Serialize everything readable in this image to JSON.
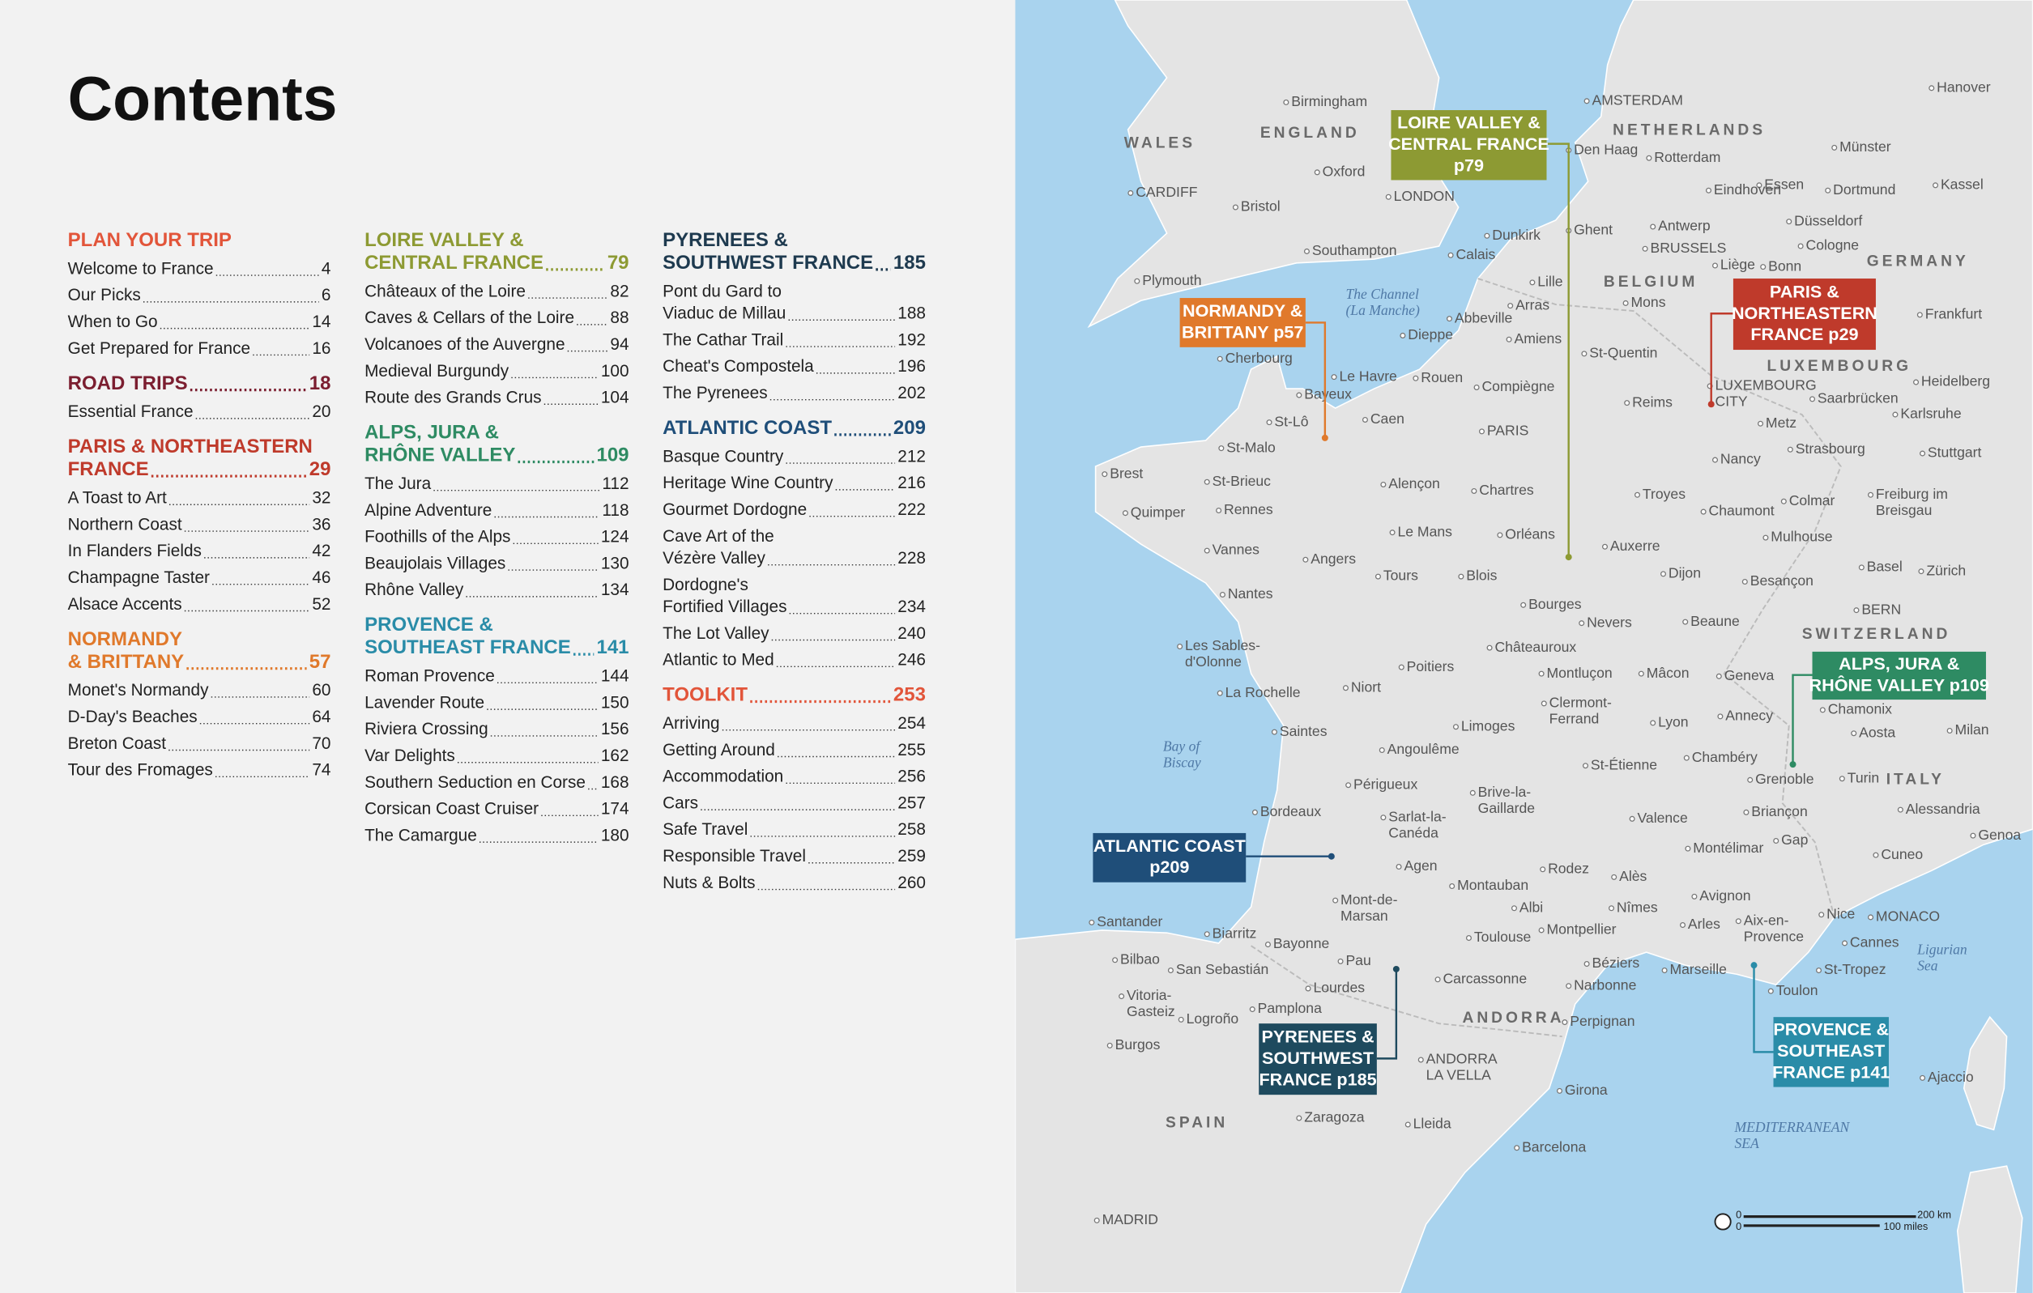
{
  "contents": {
    "title": "Contents",
    "columns": [
      [
        {
          "title": [
            "PLAN YOUR TRIP"
          ],
          "color": "#e2553a",
          "entries": [
            {
              "lines": [
                "Welcome to France"
              ],
              "page": 4
            },
            {
              "lines": [
                "Our Picks"
              ],
              "page": 6
            },
            {
              "lines": [
                "When to Go"
              ],
              "page": 14
            },
            {
              "lines": [
                "Get Prepared for France"
              ],
              "page": 16
            }
          ]
        },
        {
          "title": [
            "ROAD TRIPS"
          ],
          "page": 18,
          "color": "#7b1e30",
          "entries": [
            {
              "lines": [
                "Essential France"
              ],
              "page": 20
            }
          ]
        },
        {
          "title": [
            "PARIS & NORTHEASTERN",
            "FRANCE"
          ],
          "page": 29,
          "color": "#bf3a2b",
          "entries": [
            {
              "lines": [
                "A Toast to Art"
              ],
              "page": 32
            },
            {
              "lines": [
                "Northern Coast"
              ],
              "page": 36
            },
            {
              "lines": [
                "In Flanders Fields"
              ],
              "page": 42
            },
            {
              "lines": [
                "Champagne Taster"
              ],
              "page": 46
            },
            {
              "lines": [
                "Alsace Accents"
              ],
              "page": 52
            }
          ]
        },
        {
          "title": [
            "NORMANDY",
            "& BRITTANY"
          ],
          "page": 57,
          "color": "#e0792b",
          "entries": [
            {
              "lines": [
                "Monet's Normandy"
              ],
              "page": 60
            },
            {
              "lines": [
                "D-Day's Beaches"
              ],
              "page": 64
            },
            {
              "lines": [
                "Breton Coast"
              ],
              "page": 70
            },
            {
              "lines": [
                "Tour des Fromages"
              ],
              "page": 74
            }
          ]
        }
      ],
      [
        {
          "title": [
            "LOIRE VALLEY &",
            "CENTRAL FRANCE"
          ],
          "page": 79,
          "color": "#8d9a33",
          "entries": [
            {
              "lines": [
                "Châteaux of the Loire"
              ],
              "page": 82
            },
            {
              "lines": [
                "Caves & Cellars of the Loire"
              ],
              "page": 88
            },
            {
              "lines": [
                "Volcanoes of the Auvergne"
              ],
              "page": 94
            },
            {
              "lines": [
                "Medieval Burgundy"
              ],
              "page": 100
            },
            {
              "lines": [
                "Route des Grands Crus"
              ],
              "page": 104
            }
          ]
        },
        {
          "title": [
            "ALPS, JURA &",
            "RHÔNE VALLEY"
          ],
          "page": 109,
          "color": "#2e8b63",
          "entries": [
            {
              "lines": [
                "The Jura"
              ],
              "page": 112
            },
            {
              "lines": [
                "Alpine Adventure"
              ],
              "page": 118
            },
            {
              "lines": [
                "Foothills of the Alps"
              ],
              "page": 124
            },
            {
              "lines": [
                "Beaujolais Villages"
              ],
              "page": 130
            },
            {
              "lines": [
                "Rhône Valley"
              ],
              "page": 134
            }
          ]
        },
        {
          "title": [
            "PROVENCE &",
            "SOUTHEAST FRANCE"
          ],
          "page": 141,
          "color": "#2a8ca8",
          "entries": [
            {
              "lines": [
                "Roman Provence"
              ],
              "page": 144
            },
            {
              "lines": [
                "Lavender Route"
              ],
              "page": 150
            },
            {
              "lines": [
                "Riviera Crossing"
              ],
              "page": 156
            },
            {
              "lines": [
                "Var Delights"
              ],
              "page": 162
            },
            {
              "lines": [
                "Southern Seduction en Corse"
              ],
              "page": 168
            },
            {
              "lines": [
                "Corsican Coast Cruiser"
              ],
              "page": 174
            },
            {
              "lines": [
                "The Camargue"
              ],
              "page": 180
            }
          ]
        }
      ],
      [
        {
          "title": [
            "PYRENEES &",
            "SOUTHWEST FRANCE"
          ],
          "page": 185,
          "color": "#1e3a4f",
          "entries": [
            {
              "lines": [
                "Pont du Gard to",
                "Viaduc de Millau"
              ],
              "page": 188
            },
            {
              "lines": [
                "The Cathar Trail"
              ],
              "page": 192
            },
            {
              "lines": [
                "Cheat's Compostela"
              ],
              "page": 196
            },
            {
              "lines": [
                "The Pyrenees"
              ],
              "page": 202
            }
          ]
        },
        {
          "title": [
            "ATLANTIC COAST"
          ],
          "page": 209,
          "color": "#1f4e79",
          "entries": [
            {
              "lines": [
                "Basque Country"
              ],
              "page": 212
            },
            {
              "lines": [
                "Heritage Wine Country"
              ],
              "page": 216
            },
            {
              "lines": [
                "Gourmet Dordogne"
              ],
              "page": 222
            },
            {
              "lines": [
                "Cave Art of the",
                "Vézère Valley"
              ],
              "page": 228
            },
            {
              "lines": [
                "Dordogne's",
                "Fortified Villages"
              ],
              "page": 234
            },
            {
              "lines": [
                "The Lot Valley"
              ],
              "page": 240
            },
            {
              "lines": [
                "Atlantic to Med"
              ],
              "page": 246
            }
          ]
        },
        {
          "title": [
            "TOOLKIT"
          ],
          "page": 253,
          "color": "#e2553a",
          "entries": [
            {
              "lines": [
                "Arriving"
              ],
              "page": 254
            },
            {
              "lines": [
                "Getting Around"
              ],
              "page": 255
            },
            {
              "lines": [
                "Accommodation"
              ],
              "page": 256
            },
            {
              "lines": [
                "Cars"
              ],
              "page": 257
            },
            {
              "lines": [
                "Safe Travel"
              ],
              "page": 258
            },
            {
              "lines": [
                "Responsible Travel"
              ],
              "page": 259
            },
            {
              "lines": [
                "Nuts & Bolts"
              ],
              "page": 260
            }
          ]
        }
      ]
    ]
  },
  "map": {
    "callouts": [
      {
        "lines": [
          "LOIRE VALLEY &",
          "CENTRAL FRANCE",
          "p79"
        ],
        "color": "#8d9a33"
      },
      {
        "lines": [
          "NORMANDY &",
          "BRITTANY p57"
        ],
        "color": "#e0792b"
      },
      {
        "lines": [
          "PARIS &",
          "NORTHEASTERN",
          "FRANCE p29"
        ],
        "color": "#bf3a2b"
      },
      {
        "lines": [
          "ALPS, JURA &",
          "RHÔNE VALLEY p109"
        ],
        "color": "#2e8b63"
      },
      {
        "lines": [
          "ATLANTIC COAST",
          "p209"
        ],
        "color": "#1f4e79"
      },
      {
        "lines": [
          "PYRENEES &",
          "SOUTHWEST",
          "FRANCE p185"
        ],
        "color": "#1e4a5e"
      },
      {
        "lines": [
          "PROVENCE &",
          "SOUTHEAST",
          "FRANCE p141"
        ],
        "color": "#2a8ca8"
      }
    ],
    "labels": [
      [
        "Birmingham"
      ],
      [
        "ENGLAND"
      ],
      [
        "WALES"
      ],
      [
        "Oxford"
      ],
      [
        "LONDON"
      ],
      [
        "CARDIFF"
      ],
      [
        "Bristol"
      ],
      [
        "Southampton"
      ],
      [
        "Plymouth"
      ],
      [
        "AMSTERDAM"
      ],
      [
        "NETHERLANDS"
      ],
      [
        "Den Haag"
      ],
      [
        "Rotterdam"
      ],
      [
        "Münster"
      ],
      [
        "Hanover"
      ],
      [
        "Essen"
      ],
      [
        "Dortmund"
      ],
      [
        "Kassel"
      ],
      [
        "Eindhoven"
      ],
      [
        "Düsseldorf"
      ],
      [
        "Ghent"
      ],
      [
        "Antwerp"
      ],
      [
        "Dunkirk"
      ],
      [
        "Cologne"
      ],
      [
        "BRUSSELS"
      ],
      [
        "Calais"
      ],
      [
        "Liège"
      ],
      [
        "Bonn"
      ],
      [
        "GERMANY"
      ],
      [
        "BELGIUM"
      ],
      [
        "Lille"
      ],
      [
        "Mons"
      ],
      [
        "The Channel",
        "(La Manche)"
      ],
      [
        "Frankfurt"
      ],
      [
        "Arras"
      ],
      [
        "Abbeville"
      ],
      [
        "Dieppe"
      ],
      [
        "Amiens"
      ],
      [
        "St-Quentin"
      ],
      [
        "Cherbourg"
      ],
      [
        "LUXEMBOURG"
      ],
      [
        "Heidelberg"
      ],
      [
        "Le Havre"
      ],
      [
        "Rouen"
      ],
      [
        "Compiègne"
      ],
      [
        "LUXEMBOURG",
        "CITY"
      ],
      [
        "Bayeux"
      ],
      [
        "Saarbrücken"
      ],
      [
        "Reims"
      ],
      [
        "Karlsruhe"
      ],
      [
        "St-Lô"
      ],
      [
        "Caen"
      ],
      [
        "Metz"
      ],
      [
        "PARIS"
      ],
      [
        "Stuttgart"
      ],
      [
        "St-Malo"
      ],
      [
        "Nancy"
      ],
      [
        "Strasbourg"
      ],
      [
        "Brest"
      ],
      [
        "St-Brieuc"
      ],
      [
        "Alençon"
      ],
      [
        "Chartres"
      ],
      [
        "Troyes"
      ],
      [
        "Freiburg im",
        "Breisgau"
      ],
      [
        "Quimper"
      ],
      [
        "Rennes"
      ],
      [
        "Colmar"
      ],
      [
        "Chaumont"
      ],
      [
        "Le Mans"
      ],
      [
        "Orléans"
      ],
      [
        "Mulhouse"
      ],
      [
        "Vannes"
      ],
      [
        "Angers"
      ],
      [
        "Auxerre"
      ],
      [
        "Basel"
      ],
      [
        "Zürich"
      ],
      [
        "Tours"
      ],
      [
        "Blois"
      ],
      [
        "Dijon"
      ],
      [
        "Besançon"
      ],
      [
        "Nantes"
      ],
      [
        "Bourges"
      ],
      [
        "BERN"
      ],
      [
        "Nevers"
      ],
      [
        "Beaune"
      ],
      [
        "SWITZERLAND"
      ],
      [
        "Les Sables-",
        "d'Olonne"
      ],
      [
        "Châteauroux"
      ],
      [
        "Poitiers"
      ],
      [
        "Montluçon"
      ],
      [
        "Mâcon"
      ],
      [
        "Geneva"
      ],
      [
        "Niort"
      ],
      [
        "La Rochelle"
      ],
      [
        "Clermont-",
        "Ferrand"
      ],
      [
        "Chamonix"
      ],
      [
        "Annecy"
      ],
      [
        "Limoges"
      ],
      [
        "Lyon"
      ],
      [
        "Aosta"
      ],
      [
        "Milan"
      ],
      [
        "Saintes"
      ],
      [
        "Angoulême"
      ],
      [
        "Chambéry"
      ],
      [
        "St-Étienne"
      ],
      [
        "Bay of",
        "Biscay"
      ],
      [
        "Turin"
      ],
      [
        "ITALY"
      ],
      [
        "Grenoble"
      ],
      [
        "Périgueux"
      ],
      [
        "Brive-la-",
        "Gaillarde"
      ],
      [
        "Bordeaux"
      ],
      [
        "Sarlat-la-",
        "Canéda"
      ],
      [
        "Valence"
      ],
      [
        "Briançon"
      ],
      [
        "Alessandria"
      ],
      [
        "Genoa"
      ],
      [
        "Gap"
      ],
      [
        "Montélimar"
      ],
      [
        "Cuneo"
      ],
      [
        "Agen"
      ],
      [
        "Rodez"
      ],
      [
        "Alès"
      ],
      [
        "Montauban"
      ],
      [
        "Avignon"
      ],
      [
        "Mont-de-",
        "Marsan"
      ],
      [
        "Albi"
      ],
      [
        "Nîmes"
      ],
      [
        "Santander"
      ],
      [
        "Nice"
      ],
      [
        "MONACO"
      ],
      [
        "Arles"
      ],
      [
        "Aix-en-",
        "Provence"
      ],
      [
        "Biarritz"
      ],
      [
        "Bayonne"
      ],
      [
        "Toulouse"
      ],
      [
        "Montpellier"
      ],
      [
        "Cannes"
      ],
      [
        "Ligurian",
        "Sea"
      ],
      [
        "Bilbao"
      ],
      [
        "San Sebastián"
      ],
      [
        "Pau"
      ],
      [
        "Béziers"
      ],
      [
        "Marseille"
      ],
      [
        "St-Tropez"
      ],
      [
        "Carcassonne"
      ],
      [
        "Narbonne"
      ],
      [
        "Vitoria-",
        "Gasteiz"
      ],
      [
        "Lourdes"
      ],
      [
        "Toulon"
      ],
      [
        "Pamplona"
      ],
      [
        "Logroño"
      ],
      [
        "ANDORRA"
      ],
      [
        "Perpignan"
      ],
      [
        "Burgos"
      ],
      [
        "ANDORRA",
        "LA VELLA"
      ],
      [
        "Ajaccio"
      ],
      [
        "Girona"
      ],
      [
        "Zaragoza"
      ],
      [
        "Lleida"
      ],
      [
        "SPAIN"
      ],
      [
        "MEDITERRANEAN",
        "SEA"
      ],
      [
        "Barcelona"
      ],
      [
        "MADRID"
      ]
    ],
    "scale": {
      "km_start": "0",
      "km_end": "200 km",
      "mi_start": "0",
      "mi_end": "100 miles"
    }
  }
}
